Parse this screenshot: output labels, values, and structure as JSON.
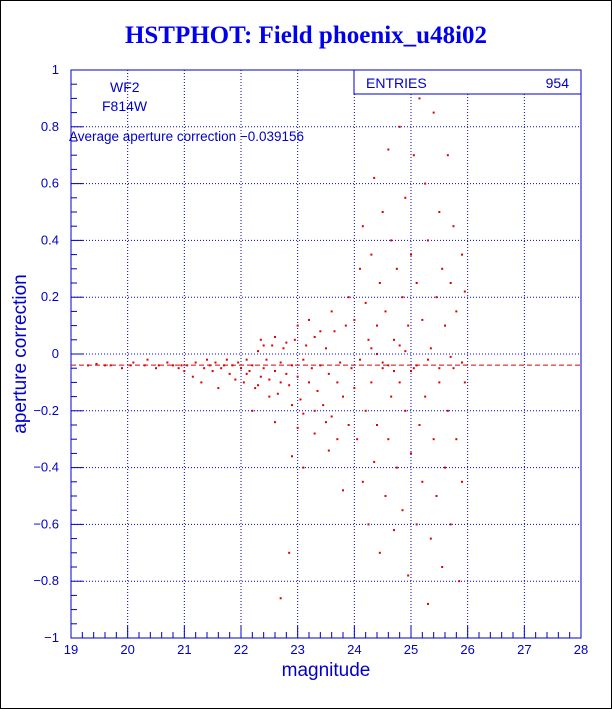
{
  "chart_data": {
    "type": "scatter",
    "title": "HSTPHOT: Field phoenix_u48i02",
    "xlabel": "magnitude",
    "ylabel": "aperture correction",
    "xlim": [
      19,
      28
    ],
    "ylim": [
      -1,
      1
    ],
    "xticks": [
      "19",
      "20",
      "21",
      "22",
      "23",
      "24",
      "25",
      "26",
      "27",
      "28"
    ],
    "yticks": [
      "-1",
      "-0.8",
      "-0.6",
      "-0.4",
      "-0.2",
      "0",
      "0.2",
      "0.4",
      "0.6",
      "0.8",
      "1"
    ],
    "grid": true,
    "annotations": {
      "camera": "WF2",
      "filter": "F814W",
      "average_text": "Average aperture correction -0.039156"
    },
    "stats": {
      "entries_label": "ENTRIES",
      "entries_value": "954"
    },
    "average_line_y": -0.039156,
    "point_color": "#dd0000",
    "axis_color": "#0000cc",
    "title_color": "#0000ee",
    "points": [
      [
        19.3,
        -0.04
      ],
      [
        19.45,
        -0.035
      ],
      [
        19.6,
        -0.04
      ],
      [
        19.7,
        -0.04
      ],
      [
        19.9,
        -0.05
      ],
      [
        20.05,
        -0.04
      ],
      [
        20.1,
        -0.03
      ],
      [
        20.3,
        -0.04
      ],
      [
        20.35,
        -0.02
      ],
      [
        20.5,
        -0.05
      ],
      [
        20.55,
        -0.04
      ],
      [
        20.7,
        -0.03
      ],
      [
        20.8,
        -0.04
      ],
      [
        20.9,
        -0.05
      ],
      [
        20.95,
        -0.04
      ],
      [
        21.0,
        -0.06
      ],
      [
        21.05,
        -0.04
      ],
      [
        21.15,
        -0.08
      ],
      [
        21.2,
        -0.03
      ],
      [
        21.3,
        -0.1
      ],
      [
        21.35,
        -0.05
      ],
      [
        21.4,
        -0.02
      ],
      [
        21.45,
        -0.04
      ],
      [
        21.5,
        -0.06
      ],
      [
        21.55,
        -0.03
      ],
      [
        21.6,
        -0.12
      ],
      [
        21.65,
        -0.05
      ],
      [
        21.7,
        -0.04
      ],
      [
        21.75,
        -0.02
      ],
      [
        21.8,
        -0.07
      ],
      [
        21.85,
        -0.04
      ],
      [
        21.9,
        -0.09
      ],
      [
        21.95,
        -0.03
      ],
      [
        22.0,
        -0.05
      ],
      [
        22.05,
        -0.1
      ],
      [
        22.1,
        -0.02
      ],
      [
        22.15,
        -0.06
      ],
      [
        22.2,
        -0.04
      ],
      [
        22.25,
        -0.12
      ],
      [
        22.3,
        0.01
      ],
      [
        22.35,
        -0.08
      ],
      [
        22.4,
        -0.05
      ],
      [
        22.45,
        -0.02
      ],
      [
        22.5,
        -0.09
      ],
      [
        22.55,
        0.03
      ],
      [
        22.6,
        -0.06
      ],
      [
        22.65,
        -0.14
      ],
      [
        22.7,
        -0.03
      ],
      [
        22.75,
        0.02
      ],
      [
        22.8,
        -0.07
      ],
      [
        22.85,
        -0.11
      ],
      [
        22.9,
        -0.04
      ],
      [
        22.95,
        0.05
      ],
      [
        23.0,
        -0.08
      ],
      [
        23.05,
        -0.16
      ],
      [
        23.1,
        -0.02
      ],
      [
        23.15,
        0.03
      ],
      [
        23.2,
        -0.1
      ],
      [
        23.25,
        -0.05
      ],
      [
        23.3,
        0.06
      ],
      [
        23.35,
        -0.13
      ],
      [
        23.4,
        -0.04
      ],
      [
        23.45,
        -0.18
      ],
      [
        23.5,
        0.02
      ],
      [
        23.55,
        -0.07
      ],
      [
        23.6,
        -0.22
      ],
      [
        23.65,
        0.08
      ],
      [
        23.7,
        -0.1
      ],
      [
        23.75,
        -0.03
      ],
      [
        23.8,
        -0.15
      ],
      [
        23.85,
        0.1
      ],
      [
        23.9,
        -0.25
      ],
      [
        22.1,
        -0.07
      ],
      [
        22.3,
        -0.11
      ],
      [
        22.4,
        0.03
      ],
      [
        22.5,
        -0.15
      ],
      [
        22.6,
        0.06
      ],
      [
        22.7,
        -0.1
      ],
      [
        22.8,
        0.04
      ],
      [
        22.9,
        -0.18
      ],
      [
        23.0,
        0.1
      ],
      [
        23.1,
        -0.21
      ],
      [
        23.2,
        0.12
      ],
      [
        23.3,
        -0.2
      ],
      [
        23.4,
        0.08
      ],
      [
        23.5,
        -0.24
      ],
      [
        23.6,
        0.15
      ],
      [
        23.7,
        -0.3
      ],
      [
        22.2,
        -0.2
      ],
      [
        22.35,
        0.05
      ],
      [
        22.6,
        -0.24
      ],
      [
        22.9,
        -0.36
      ],
      [
        23.0,
        -0.26
      ],
      [
        23.1,
        -0.4
      ],
      [
        22.85,
        -0.7
      ],
      [
        22.7,
        -0.86
      ],
      [
        23.3,
        -0.28
      ],
      [
        23.55,
        -0.34
      ],
      [
        23.8,
        -0.48
      ],
      [
        23.9,
        0.2
      ],
      [
        23.95,
        -0.05
      ],
      [
        24.0,
        0.12
      ],
      [
        24.0,
        -0.12
      ],
      [
        24.05,
        -0.3
      ],
      [
        24.1,
        0.3
      ],
      [
        24.1,
        -0.02
      ],
      [
        24.15,
        -0.45
      ],
      [
        24.15,
        0.45
      ],
      [
        24.2,
        0.18
      ],
      [
        24.2,
        -0.2
      ],
      [
        24.25,
        -0.6
      ],
      [
        24.25,
        0.05
      ],
      [
        24.3,
        0.35
      ],
      [
        24.3,
        -0.1
      ],
      [
        24.35,
        -0.38
      ],
      [
        24.35,
        0.62
      ],
      [
        24.4,
        0.1
      ],
      [
        24.4,
        -0.25
      ],
      [
        24.45,
        -0.7
      ],
      [
        24.45,
        0.25
      ],
      [
        24.5,
        0.5
      ],
      [
        24.5,
        -0.05
      ],
      [
        24.55,
        -0.5
      ],
      [
        24.55,
        0.15
      ],
      [
        24.6,
        0.72
      ],
      [
        24.6,
        -0.3
      ],
      [
        24.65,
        -0.15
      ],
      [
        24.65,
        0.4
      ],
      [
        24.7,
        -0.62
      ],
      [
        24.7,
        0.05
      ],
      [
        24.75,
        0.3
      ],
      [
        24.75,
        -0.4
      ],
      [
        24.8,
        0.8
      ],
      [
        24.8,
        -0.1
      ],
      [
        24.85,
        -0.55
      ],
      [
        24.85,
        0.2
      ],
      [
        24.9,
        0.55
      ],
      [
        24.9,
        -0.2
      ],
      [
        24.95,
        -0.78
      ],
      [
        24.95,
        0.1
      ],
      [
        25.0,
        0.35
      ],
      [
        25.0,
        -0.35
      ],
      [
        25.05,
        0.7
      ],
      [
        25.05,
        -0.05
      ],
      [
        25.1,
        -0.6
      ],
      [
        25.1,
        0.25
      ],
      [
        25.15,
        0.9
      ],
      [
        25.15,
        -0.25
      ],
      [
        25.2,
        -0.45
      ],
      [
        25.2,
        0.12
      ],
      [
        25.25,
        0.6
      ],
      [
        25.25,
        -0.15
      ],
      [
        25.3,
        -0.88
      ],
      [
        25.3,
        0.4
      ],
      [
        25.35,
        0.02
      ],
      [
        25.35,
        -0.65
      ],
      [
        25.4,
        0.85
      ],
      [
        25.4,
        -0.3
      ],
      [
        25.45,
        0.2
      ],
      [
        25.45,
        -0.5
      ],
      [
        25.5,
        0.5
      ],
      [
        25.5,
        -0.1
      ],
      [
        25.55,
        -0.75
      ],
      [
        25.55,
        0.3
      ],
      [
        25.6,
        0.1
      ],
      [
        25.6,
        -0.4
      ],
      [
        25.65,
        0.7
      ],
      [
        25.65,
        -0.2
      ],
      [
        25.7,
        -0.6
      ],
      [
        25.7,
        0.25
      ],
      [
        25.75,
        0.45
      ],
      [
        25.75,
        -0.05
      ],
      [
        25.8,
        -0.3
      ],
      [
        25.8,
        0.15
      ],
      [
        25.85,
        -0.8
      ],
      [
        25.9,
        0.35
      ],
      [
        25.9,
        -0.45
      ],
      [
        25.95,
        0.22
      ],
      [
        25.95,
        -0.1
      ],
      [
        24.3,
        0.02
      ],
      [
        24.5,
        -0.03
      ],
      [
        24.7,
        -0.06
      ],
      [
        24.9,
        0.01
      ],
      [
        25.1,
        -0.04
      ],
      [
        25.3,
        -0.02
      ],
      [
        25.5,
        -0.05
      ],
      [
        25.7,
        -0.01
      ],
      [
        25.9,
        -0.03
      ],
      [
        24.4,
        0.0
      ],
      [
        24.6,
        -0.04
      ],
      [
        24.8,
        0.03
      ],
      [
        25.0,
        -0.06
      ]
    ]
  }
}
